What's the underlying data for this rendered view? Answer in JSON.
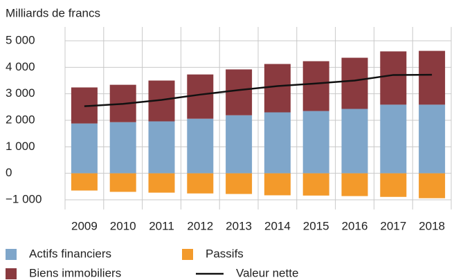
{
  "chart_data": {
    "type": "bar",
    "stacked": true,
    "y_axis_label": "Milliards de francs",
    "categories": [
      "2009",
      "2010",
      "2011",
      "2012",
      "2013",
      "2014",
      "2015",
      "2016",
      "2017",
      "2018"
    ],
    "series": [
      {
        "name": "Actifs financiers",
        "color": "#7fa6ca",
        "values": [
          1880,
          1930,
          1960,
          2060,
          2190,
          2300,
          2350,
          2430,
          2590,
          2590
        ]
      },
      {
        "name": "Biens immobiliers",
        "color": "#8a3a3f",
        "values": [
          1360,
          1410,
          1540,
          1670,
          1730,
          1825,
          1880,
          1930,
          2010,
          2030
        ]
      },
      {
        "name": "Passifs",
        "color": "#f39a2b",
        "values": [
          -650,
          -700,
          -730,
          -760,
          -780,
          -830,
          -840,
          -860,
          -890,
          -940
        ]
      },
      {
        "name": "Valeur nette",
        "color": "#111111",
        "type": "line",
        "values": [
          2530,
          2620,
          2770,
          2970,
          3140,
          3290,
          3390,
          3500,
          3710,
          3720
        ]
      }
    ],
    "ylim": [
      -1000,
      5000
    ],
    "yticks": [
      {
        "value": -1000,
        "label": "−1 000"
      },
      0,
      {
        "value": 1000,
        "label": "1 000"
      },
      {
        "value": 2000,
        "label": "2 000"
      },
      {
        "value": 3000,
        "label": "3 000"
      },
      {
        "value": 4000,
        "label": "4 000"
      },
      {
        "value": 5000,
        "label": "5 000"
      }
    ],
    "grid": true
  }
}
